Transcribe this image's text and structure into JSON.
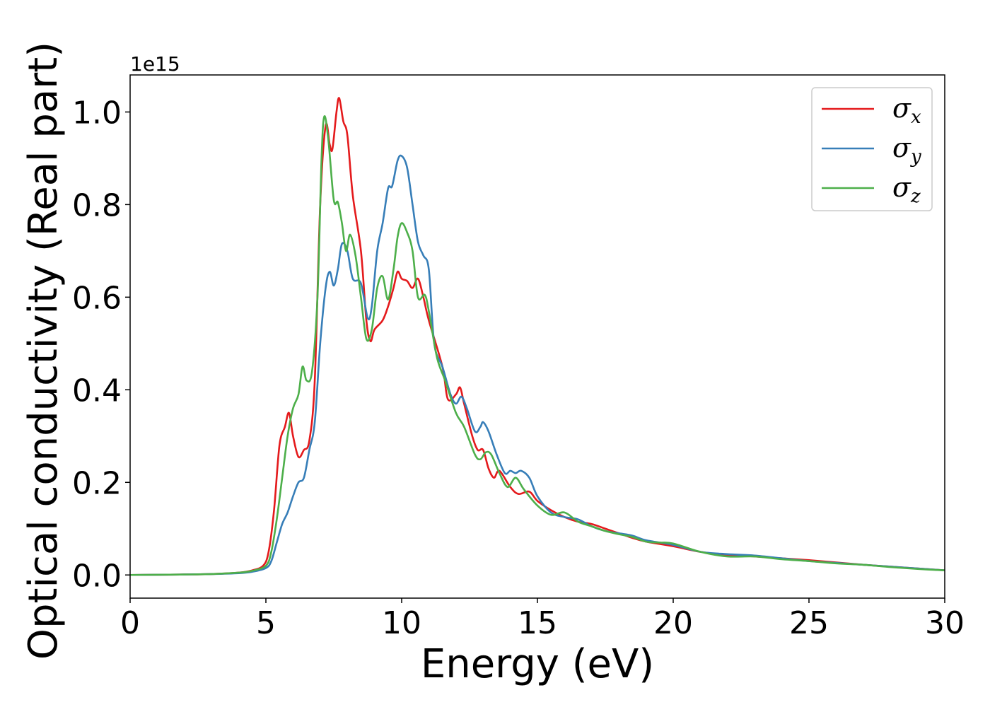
{
  "chart_data": {
    "type": "line",
    "xlabel": "Energy (eV)",
    "ylabel": "Optical conductivity (Real part)",
    "y_offset_label": "1e15",
    "xlim": [
      0,
      30
    ],
    "ylim": [
      -0.05,
      1.08
    ],
    "xticks": [
      0,
      5,
      10,
      15,
      20,
      25,
      30
    ],
    "xtick_labels": [
      "0",
      "5",
      "10",
      "15",
      "20",
      "25",
      "30"
    ],
    "yticks": [
      0.0,
      0.2,
      0.4,
      0.6,
      0.8,
      1.0
    ],
    "ytick_labels": [
      "0.0",
      "0.2",
      "0.4",
      "0.6",
      "0.8",
      "1.0"
    ],
    "grid": false,
    "legend_position": "top-right",
    "series": [
      {
        "name": "σx",
        "symbol": "σ",
        "subscript": "x",
        "color": "#e41a1c",
        "points": [
          [
            0,
            0
          ],
          [
            2,
            0.001
          ],
          [
            3,
            0.002
          ],
          [
            4,
            0.005
          ],
          [
            4.5,
            0.01
          ],
          [
            4.9,
            0.02
          ],
          [
            5.1,
            0.05
          ],
          [
            5.3,
            0.14
          ],
          [
            5.5,
            0.28
          ],
          [
            5.7,
            0.32
          ],
          [
            5.85,
            0.35
          ],
          [
            6.0,
            0.3
          ],
          [
            6.2,
            0.255
          ],
          [
            6.4,
            0.27
          ],
          [
            6.6,
            0.29
          ],
          [
            6.8,
            0.42
          ],
          [
            7.0,
            0.8
          ],
          [
            7.2,
            0.97
          ],
          [
            7.35,
            0.93
          ],
          [
            7.45,
            0.92
          ],
          [
            7.6,
            1.0
          ],
          [
            7.7,
            1.03
          ],
          [
            7.85,
            0.98
          ],
          [
            8.0,
            0.95
          ],
          [
            8.2,
            0.82
          ],
          [
            8.5,
            0.7
          ],
          [
            8.7,
            0.55
          ],
          [
            8.85,
            0.505
          ],
          [
            9.0,
            0.53
          ],
          [
            9.3,
            0.55
          ],
          [
            9.5,
            0.58
          ],
          [
            9.7,
            0.62
          ],
          [
            9.85,
            0.655
          ],
          [
            10.0,
            0.64
          ],
          [
            10.2,
            0.635
          ],
          [
            10.4,
            0.62
          ],
          [
            10.6,
            0.64
          ],
          [
            10.8,
            0.6
          ],
          [
            11.0,
            0.55
          ],
          [
            11.5,
            0.45
          ],
          [
            11.7,
            0.38
          ],
          [
            12.0,
            0.39
          ],
          [
            12.15,
            0.405
          ],
          [
            12.3,
            0.37
          ],
          [
            12.6,
            0.3
          ],
          [
            12.8,
            0.27
          ],
          [
            13.0,
            0.27
          ],
          [
            13.2,
            0.23
          ],
          [
            13.4,
            0.21
          ],
          [
            13.6,
            0.225
          ],
          [
            14.0,
            0.19
          ],
          [
            14.3,
            0.175
          ],
          [
            14.7,
            0.18
          ],
          [
            15.0,
            0.16
          ],
          [
            15.5,
            0.14
          ],
          [
            16.0,
            0.125
          ],
          [
            16.5,
            0.115
          ],
          [
            17.0,
            0.11
          ],
          [
            17.5,
            0.1
          ],
          [
            18.0,
            0.09
          ],
          [
            18.5,
            0.08
          ],
          [
            19.0,
            0.072
          ],
          [
            20.0,
            0.062
          ],
          [
            21.0,
            0.05
          ],
          [
            22.0,
            0.043
          ],
          [
            23.0,
            0.04
          ],
          [
            24.0,
            0.036
          ],
          [
            25.0,
            0.032
          ],
          [
            26.0,
            0.027
          ],
          [
            27.0,
            0.022
          ],
          [
            28.0,
            0.018
          ],
          [
            29.0,
            0.014
          ],
          [
            30.0,
            0.01
          ]
        ]
      },
      {
        "name": "σy",
        "symbol": "σ",
        "subscript": "y",
        "color": "#377eb8",
        "points": [
          [
            0,
            0
          ],
          [
            2,
            0.001
          ],
          [
            3,
            0.002
          ],
          [
            4,
            0.004
          ],
          [
            4.5,
            0.007
          ],
          [
            5.0,
            0.015
          ],
          [
            5.2,
            0.03
          ],
          [
            5.4,
            0.07
          ],
          [
            5.6,
            0.11
          ],
          [
            5.8,
            0.135
          ],
          [
            6.0,
            0.17
          ],
          [
            6.2,
            0.2
          ],
          [
            6.4,
            0.21
          ],
          [
            6.6,
            0.27
          ],
          [
            6.8,
            0.33
          ],
          [
            7.0,
            0.5
          ],
          [
            7.2,
            0.62
          ],
          [
            7.35,
            0.655
          ],
          [
            7.5,
            0.625
          ],
          [
            7.65,
            0.66
          ],
          [
            7.8,
            0.715
          ],
          [
            8.0,
            0.7
          ],
          [
            8.2,
            0.64
          ],
          [
            8.5,
            0.63
          ],
          [
            8.75,
            0.555
          ],
          [
            8.9,
            0.58
          ],
          [
            9.1,
            0.7
          ],
          [
            9.3,
            0.76
          ],
          [
            9.5,
            0.835
          ],
          [
            9.65,
            0.84
          ],
          [
            9.85,
            0.895
          ],
          [
            10.0,
            0.905
          ],
          [
            10.2,
            0.88
          ],
          [
            10.4,
            0.8
          ],
          [
            10.6,
            0.72
          ],
          [
            10.8,
            0.69
          ],
          [
            11.0,
            0.66
          ],
          [
            11.2,
            0.5
          ],
          [
            11.5,
            0.45
          ],
          [
            11.8,
            0.39
          ],
          [
            12.0,
            0.37
          ],
          [
            12.2,
            0.385
          ],
          [
            12.4,
            0.36
          ],
          [
            12.7,
            0.31
          ],
          [
            12.9,
            0.32
          ],
          [
            13.0,
            0.33
          ],
          [
            13.2,
            0.31
          ],
          [
            13.5,
            0.26
          ],
          [
            13.8,
            0.22
          ],
          [
            14.0,
            0.225
          ],
          [
            14.2,
            0.22
          ],
          [
            14.4,
            0.225
          ],
          [
            14.7,
            0.21
          ],
          [
            15.0,
            0.17
          ],
          [
            15.5,
            0.135
          ],
          [
            16.0,
            0.125
          ],
          [
            16.5,
            0.12
          ],
          [
            17.0,
            0.105
          ],
          [
            17.5,
            0.095
          ],
          [
            18.0,
            0.09
          ],
          [
            18.5,
            0.085
          ],
          [
            19.0,
            0.075
          ],
          [
            20.0,
            0.065
          ],
          [
            21.0,
            0.05
          ],
          [
            22.0,
            0.045
          ],
          [
            23.0,
            0.042
          ],
          [
            24.0,
            0.036
          ],
          [
            25.0,
            0.03
          ],
          [
            26.0,
            0.026
          ],
          [
            27.0,
            0.022
          ],
          [
            28.0,
            0.018
          ],
          [
            29.0,
            0.014
          ],
          [
            30.0,
            0.01
          ]
        ]
      },
      {
        "name": "σz",
        "symbol": "σ",
        "subscript": "z",
        "color": "#4daf4a",
        "points": [
          [
            0,
            0
          ],
          [
            2,
            0.001
          ],
          [
            3,
            0.002
          ],
          [
            4,
            0.005
          ],
          [
            4.5,
            0.009
          ],
          [
            5.0,
            0.02
          ],
          [
            5.2,
            0.05
          ],
          [
            5.4,
            0.12
          ],
          [
            5.6,
            0.21
          ],
          [
            5.8,
            0.3
          ],
          [
            6.0,
            0.36
          ],
          [
            6.2,
            0.39
          ],
          [
            6.35,
            0.45
          ],
          [
            6.5,
            0.42
          ],
          [
            6.7,
            0.44
          ],
          [
            6.9,
            0.6
          ],
          [
            7.05,
            0.9
          ],
          [
            7.15,
            0.99
          ],
          [
            7.3,
            0.94
          ],
          [
            7.5,
            0.81
          ],
          [
            7.65,
            0.805
          ],
          [
            7.8,
            0.76
          ],
          [
            7.95,
            0.7
          ],
          [
            8.1,
            0.735
          ],
          [
            8.3,
            0.69
          ],
          [
            8.5,
            0.6
          ],
          [
            8.7,
            0.51
          ],
          [
            8.9,
            0.53
          ],
          [
            9.1,
            0.62
          ],
          [
            9.3,
            0.645
          ],
          [
            9.5,
            0.595
          ],
          [
            9.7,
            0.66
          ],
          [
            9.85,
            0.73
          ],
          [
            10.0,
            0.76
          ],
          [
            10.2,
            0.74
          ],
          [
            10.4,
            0.7
          ],
          [
            10.6,
            0.6
          ],
          [
            10.85,
            0.605
          ],
          [
            11.0,
            0.57
          ],
          [
            11.3,
            0.47
          ],
          [
            11.6,
            0.42
          ],
          [
            12.0,
            0.35
          ],
          [
            12.3,
            0.32
          ],
          [
            12.7,
            0.26
          ],
          [
            12.9,
            0.25
          ],
          [
            13.1,
            0.265
          ],
          [
            13.3,
            0.26
          ],
          [
            13.6,
            0.22
          ],
          [
            13.9,
            0.19
          ],
          [
            14.2,
            0.21
          ],
          [
            14.5,
            0.185
          ],
          [
            15.0,
            0.15
          ],
          [
            15.5,
            0.13
          ],
          [
            16.0,
            0.135
          ],
          [
            16.5,
            0.115
          ],
          [
            17.0,
            0.105
          ],
          [
            17.5,
            0.095
          ],
          [
            18.0,
            0.088
          ],
          [
            18.5,
            0.082
          ],
          [
            19.0,
            0.072
          ],
          [
            19.5,
            0.07
          ],
          [
            20.0,
            0.068
          ],
          [
            21.0,
            0.05
          ],
          [
            22.0,
            0.04
          ],
          [
            23.0,
            0.04
          ],
          [
            24.0,
            0.034
          ],
          [
            25.0,
            0.03
          ],
          [
            26.0,
            0.025
          ],
          [
            27.0,
            0.022
          ],
          [
            28.0,
            0.017
          ],
          [
            29.0,
            0.013
          ],
          [
            30.0,
            0.01
          ]
        ]
      }
    ]
  }
}
